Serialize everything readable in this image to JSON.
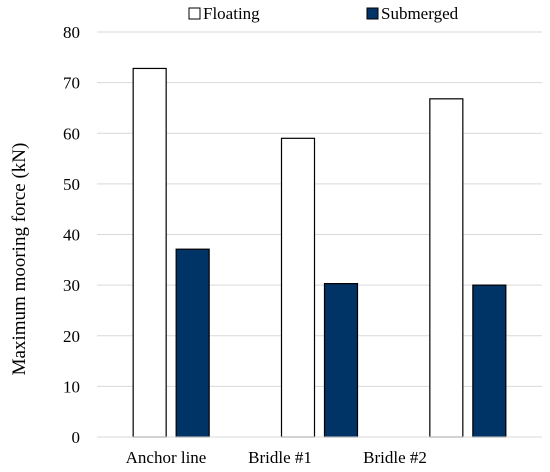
{
  "chart_data": {
    "type": "bar",
    "title": "",
    "xlabel": "",
    "ylabel": "Maximum mooring force (kN)",
    "ylim": [
      0,
      80
    ],
    "yticks": [
      0,
      10,
      20,
      30,
      40,
      50,
      60,
      70,
      80
    ],
    "grid": true,
    "legend_position": "top",
    "categories": [
      "Anchor line",
      "Bridle #1",
      "Bridle #2"
    ],
    "series": [
      {
        "name": "Floating",
        "values": [
          72.8,
          59.0,
          66.8
        ],
        "fill": "#ffffff",
        "stroke": "#000000"
      },
      {
        "name": "Submerged",
        "values": [
          37.1,
          30.3,
          30.0
        ],
        "fill": "#003366",
        "stroke": "#000000"
      }
    ]
  }
}
